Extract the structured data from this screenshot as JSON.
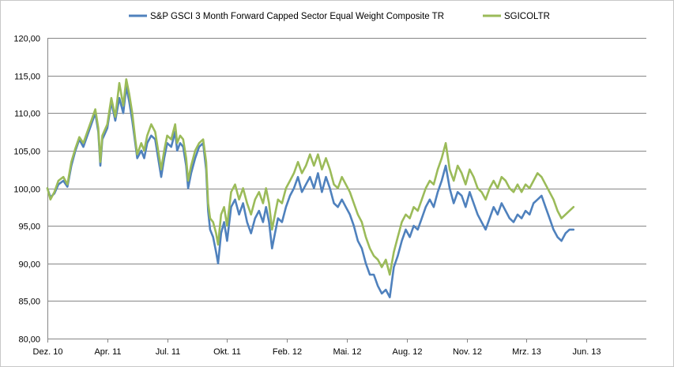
{
  "chart_data": {
    "type": "line",
    "title": "",
    "xlabel": "",
    "ylabel": "",
    "ylim": [
      80,
      120
    ],
    "y_ticks": [
      "120,00",
      "115,00",
      "110,00",
      "105,00",
      "100,00",
      "95,00",
      "90,00",
      "85,00",
      "80,00"
    ],
    "x_ticks": [
      "Dez. 10",
      "Apr. 11",
      "Jul. 11",
      "Okt. 11",
      "Feb. 12",
      "Mai. 12",
      "Aug. 12",
      "Nov. 12",
      "Mrz. 13",
      "Jun. 13"
    ],
    "grid": "horizontal",
    "legend": "top",
    "x_unit": "months since Dez. 10",
    "series": [
      {
        "name": "S&P GSCI 3 Month Forward Capped Sector Equal Weight Composite TR",
        "color": "#4F81BD",
        "points": [
          [
            0.0,
            100.0
          ],
          [
            0.15,
            98.8
          ],
          [
            0.35,
            99.3
          ],
          [
            0.55,
            100.5
          ],
          [
            0.8,
            101.0
          ],
          [
            1.0,
            100.2
          ],
          [
            1.2,
            103.0
          ],
          [
            1.4,
            105.0
          ],
          [
            1.6,
            106.5
          ],
          [
            1.8,
            105.5
          ],
          [
            2.0,
            107.0
          ],
          [
            2.2,
            108.5
          ],
          [
            2.4,
            110.0
          ],
          [
            2.55,
            107.5
          ],
          [
            2.65,
            103.0
          ],
          [
            2.75,
            106.5
          ],
          [
            3.0,
            108.0
          ],
          [
            3.2,
            111.5
          ],
          [
            3.4,
            109.0
          ],
          [
            3.6,
            112.0
          ],
          [
            3.8,
            110.0
          ],
          [
            3.95,
            113.5
          ],
          [
            4.1,
            111.5
          ],
          [
            4.25,
            109.0
          ],
          [
            4.4,
            106.0
          ],
          [
            4.5,
            104.0
          ],
          [
            4.7,
            105.0
          ],
          [
            4.85,
            104.0
          ],
          [
            5.0,
            106.0
          ],
          [
            5.2,
            107.0
          ],
          [
            5.4,
            106.5
          ],
          [
            5.55,
            104.0
          ],
          [
            5.7,
            101.5
          ],
          [
            5.85,
            104.0
          ],
          [
            6.0,
            106.0
          ],
          [
            6.2,
            105.5
          ],
          [
            6.4,
            107.5
          ],
          [
            6.5,
            105.0
          ],
          [
            6.65,
            106.0
          ],
          [
            6.8,
            105.5
          ],
          [
            6.95,
            103.0
          ],
          [
            7.05,
            100.0
          ],
          [
            7.2,
            102.0
          ],
          [
            7.4,
            104.0
          ],
          [
            7.6,
            105.5
          ],
          [
            7.8,
            106.0
          ],
          [
            7.95,
            102.5
          ],
          [
            8.05,
            97.0
          ],
          [
            8.15,
            94.5
          ],
          [
            8.3,
            93.5
          ],
          [
            8.45,
            91.5
          ],
          [
            8.55,
            90.0
          ],
          [
            8.7,
            94.0
          ],
          [
            8.85,
            95.5
          ],
          [
            9.0,
            93.0
          ],
          [
            9.2,
            97.5
          ],
          [
            9.4,
            98.5
          ],
          [
            9.6,
            96.5
          ],
          [
            9.8,
            98.0
          ],
          [
            10.0,
            95.5
          ],
          [
            10.2,
            94.0
          ],
          [
            10.4,
            96.0
          ],
          [
            10.6,
            97.0
          ],
          [
            10.8,
            95.5
          ],
          [
            10.95,
            97.5
          ],
          [
            11.1,
            95.5
          ],
          [
            11.25,
            92.0
          ],
          [
            11.4,
            94.0
          ],
          [
            11.55,
            96.0
          ],
          [
            11.75,
            95.5
          ],
          [
            11.95,
            97.5
          ],
          [
            12.15,
            99.0
          ],
          [
            12.35,
            100.0
          ],
          [
            12.55,
            101.5
          ],
          [
            12.75,
            99.5
          ],
          [
            12.95,
            100.5
          ],
          [
            13.15,
            101.5
          ],
          [
            13.35,
            100.0
          ],
          [
            13.55,
            102.0
          ],
          [
            13.75,
            99.5
          ],
          [
            13.95,
            101.5
          ],
          [
            14.15,
            100.0
          ],
          [
            14.35,
            98.0
          ],
          [
            14.55,
            97.5
          ],
          [
            14.75,
            98.5
          ],
          [
            14.95,
            97.5
          ],
          [
            15.15,
            96.5
          ],
          [
            15.35,
            95.0
          ],
          [
            15.55,
            93.0
          ],
          [
            15.75,
            92.0
          ],
          [
            15.95,
            90.0
          ],
          [
            16.15,
            88.5
          ],
          [
            16.35,
            88.5
          ],
          [
            16.55,
            87.0
          ],
          [
            16.75,
            86.0
          ],
          [
            16.95,
            86.5
          ],
          [
            17.15,
            85.5
          ],
          [
            17.35,
            89.5
          ],
          [
            17.55,
            91.0
          ],
          [
            17.75,
            93.0
          ],
          [
            17.95,
            94.5
          ],
          [
            18.15,
            93.5
          ],
          [
            18.35,
            95.0
          ],
          [
            18.55,
            94.5
          ],
          [
            18.75,
            96.0
          ],
          [
            18.95,
            97.5
          ],
          [
            19.15,
            98.5
          ],
          [
            19.35,
            97.5
          ],
          [
            19.55,
            99.5
          ],
          [
            19.75,
            101.0
          ],
          [
            19.95,
            103.0
          ],
          [
            20.15,
            100.0
          ],
          [
            20.35,
            98.0
          ],
          [
            20.55,
            99.5
          ],
          [
            20.75,
            99.0
          ],
          [
            20.95,
            97.5
          ],
          [
            21.15,
            99.5
          ],
          [
            21.35,
            98.0
          ],
          [
            21.55,
            96.5
          ],
          [
            21.75,
            95.5
          ],
          [
            21.95,
            94.5
          ],
          [
            22.15,
            96.0
          ],
          [
            22.35,
            97.5
          ],
          [
            22.55,
            96.5
          ],
          [
            22.75,
            98.0
          ],
          [
            22.95,
            97.0
          ],
          [
            23.15,
            96.0
          ],
          [
            23.35,
            95.5
          ],
          [
            23.55,
            96.5
          ],
          [
            23.75,
            96.0
          ],
          [
            23.95,
            97.0
          ],
          [
            24.15,
            96.5
          ],
          [
            24.35,
            98.0
          ],
          [
            24.55,
            98.5
          ],
          [
            24.75,
            99.0
          ],
          [
            24.95,
            97.5
          ],
          [
            25.15,
            96.0
          ],
          [
            25.35,
            94.5
          ],
          [
            25.55,
            93.5
          ],
          [
            25.75,
            93.0
          ],
          [
            25.95,
            94.0
          ],
          [
            26.15,
            94.5
          ],
          [
            26.35,
            94.5
          ]
        ]
      },
      {
        "name": "SGICOLTR",
        "color": "#9BBB59",
        "points": [
          [
            0.0,
            100.0
          ],
          [
            0.15,
            98.5
          ],
          [
            0.35,
            99.5
          ],
          [
            0.55,
            101.0
          ],
          [
            0.8,
            101.5
          ],
          [
            1.0,
            100.5
          ],
          [
            1.2,
            103.5
          ],
          [
            1.4,
            105.3
          ],
          [
            1.6,
            106.8
          ],
          [
            1.8,
            106.0
          ],
          [
            2.0,
            107.5
          ],
          [
            2.2,
            109.0
          ],
          [
            2.4,
            110.5
          ],
          [
            2.55,
            108.0
          ],
          [
            2.65,
            103.5
          ],
          [
            2.75,
            107.0
          ],
          [
            3.0,
            108.5
          ],
          [
            3.2,
            112.0
          ],
          [
            3.4,
            109.5
          ],
          [
            3.6,
            114.0
          ],
          [
            3.8,
            111.0
          ],
          [
            3.95,
            114.5
          ],
          [
            4.1,
            112.5
          ],
          [
            4.25,
            110.0
          ],
          [
            4.4,
            106.5
          ],
          [
            4.5,
            104.5
          ],
          [
            4.7,
            106.0
          ],
          [
            4.85,
            105.0
          ],
          [
            5.0,
            107.0
          ],
          [
            5.2,
            108.5
          ],
          [
            5.4,
            107.5
          ],
          [
            5.55,
            105.0
          ],
          [
            5.7,
            102.5
          ],
          [
            5.85,
            105.0
          ],
          [
            6.0,
            107.0
          ],
          [
            6.2,
            106.5
          ],
          [
            6.4,
            108.5
          ],
          [
            6.5,
            106.0
          ],
          [
            6.65,
            107.0
          ],
          [
            6.8,
            106.5
          ],
          [
            6.95,
            104.0
          ],
          [
            7.05,
            101.0
          ],
          [
            7.2,
            103.0
          ],
          [
            7.4,
            105.0
          ],
          [
            7.6,
            106.0
          ],
          [
            7.8,
            106.5
          ],
          [
            7.95,
            103.5
          ],
          [
            8.05,
            98.0
          ],
          [
            8.15,
            96.0
          ],
          [
            8.3,
            95.5
          ],
          [
            8.45,
            94.0
          ],
          [
            8.55,
            92.5
          ],
          [
            8.7,
            96.5
          ],
          [
            8.85,
            97.5
          ],
          [
            9.0,
            95.0
          ],
          [
            9.2,
            99.5
          ],
          [
            9.4,
            100.5
          ],
          [
            9.6,
            98.5
          ],
          [
            9.8,
            100.0
          ],
          [
            10.0,
            98.0
          ],
          [
            10.2,
            96.5
          ],
          [
            10.4,
            98.5
          ],
          [
            10.6,
            99.5
          ],
          [
            10.8,
            98.0
          ],
          [
            10.95,
            100.0
          ],
          [
            11.1,
            98.0
          ],
          [
            11.25,
            94.5
          ],
          [
            11.4,
            96.5
          ],
          [
            11.55,
            98.5
          ],
          [
            11.75,
            98.0
          ],
          [
            11.95,
            100.0
          ],
          [
            12.15,
            101.0
          ],
          [
            12.35,
            102.0
          ],
          [
            12.55,
            103.5
          ],
          [
            12.75,
            102.0
          ],
          [
            12.95,
            103.0
          ],
          [
            13.15,
            104.5
          ],
          [
            13.35,
            103.0
          ],
          [
            13.55,
            104.5
          ],
          [
            13.75,
            102.5
          ],
          [
            13.95,
            104.0
          ],
          [
            14.15,
            102.5
          ],
          [
            14.35,
            100.5
          ],
          [
            14.55,
            100.0
          ],
          [
            14.75,
            101.5
          ],
          [
            14.95,
            100.5
          ],
          [
            15.15,
            99.5
          ],
          [
            15.35,
            98.0
          ],
          [
            15.55,
            96.5
          ],
          [
            15.75,
            95.5
          ],
          [
            15.95,
            93.5
          ],
          [
            16.15,
            92.0
          ],
          [
            16.35,
            91.0
          ],
          [
            16.55,
            90.5
          ],
          [
            16.75,
            89.5
          ],
          [
            16.95,
            90.5
          ],
          [
            17.15,
            88.5
          ],
          [
            17.35,
            91.5
          ],
          [
            17.55,
            93.5
          ],
          [
            17.75,
            95.5
          ],
          [
            17.95,
            96.5
          ],
          [
            18.15,
            96.0
          ],
          [
            18.35,
            97.5
          ],
          [
            18.55,
            97.0
          ],
          [
            18.75,
            98.5
          ],
          [
            18.95,
            100.0
          ],
          [
            19.15,
            101.0
          ],
          [
            19.35,
            100.5
          ],
          [
            19.55,
            102.5
          ],
          [
            19.75,
            104.0
          ],
          [
            19.95,
            106.0
          ],
          [
            20.15,
            102.5
          ],
          [
            20.35,
            101.0
          ],
          [
            20.55,
            103.0
          ],
          [
            20.75,
            102.0
          ],
          [
            20.95,
            100.5
          ],
          [
            21.15,
            102.5
          ],
          [
            21.35,
            101.5
          ],
          [
            21.55,
            100.0
          ],
          [
            21.75,
            99.5
          ],
          [
            21.95,
            98.5
          ],
          [
            22.15,
            100.0
          ],
          [
            22.35,
            101.0
          ],
          [
            22.55,
            100.0
          ],
          [
            22.75,
            101.5
          ],
          [
            22.95,
            101.0
          ],
          [
            23.15,
            100.0
          ],
          [
            23.35,
            99.5
          ],
          [
            23.55,
            100.5
          ],
          [
            23.75,
            99.5
          ],
          [
            23.95,
            100.5
          ],
          [
            24.15,
            100.0
          ],
          [
            24.35,
            101.0
          ],
          [
            24.55,
            102.0
          ],
          [
            24.75,
            101.5
          ],
          [
            24.95,
            100.5
          ],
          [
            25.15,
            99.5
          ],
          [
            25.35,
            98.5
          ],
          [
            25.55,
            97.0
          ],
          [
            25.75,
            96.0
          ],
          [
            25.95,
            96.5
          ],
          [
            26.15,
            97.0
          ],
          [
            26.35,
            97.5
          ]
        ]
      }
    ]
  }
}
